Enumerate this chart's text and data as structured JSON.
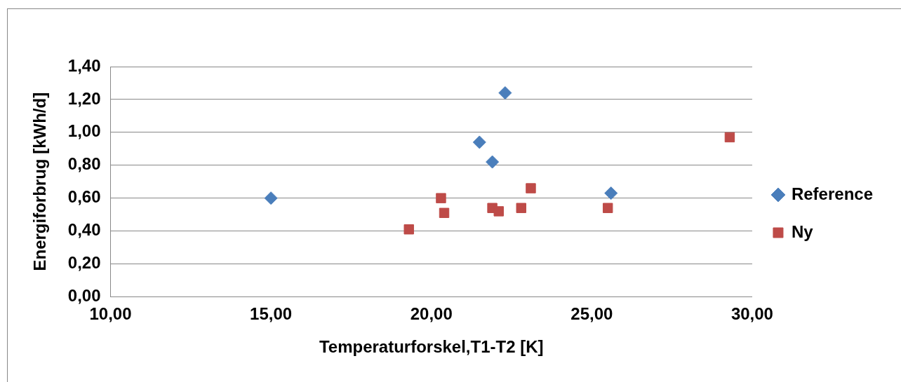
{
  "chart_data": {
    "type": "scatter",
    "xlabel": "Temperaturforskel,T1-T2 [K]",
    "ylabel": "Energiforbrug [kWh/d]",
    "series": [
      {
        "name": "Reference",
        "color": "#4a7ebb",
        "marker": "diamond",
        "x": [
          15.0,
          21.5,
          22.3,
          21.9,
          25.6
        ],
        "values": [
          0.6,
          0.94,
          1.24,
          0.82,
          0.63
        ]
      },
      {
        "name": "Ny",
        "color": "#be4b48",
        "marker": "square",
        "x": [
          19.3,
          20.3,
          20.4,
          21.9,
          22.1,
          22.8,
          23.1,
          25.5,
          29.3
        ],
        "values": [
          0.41,
          0.6,
          0.51,
          0.54,
          0.52,
          0.54,
          0.66,
          0.54,
          0.97
        ]
      }
    ],
    "xlim": [
      10,
      30
    ],
    "xticks": [
      {
        "value": 10,
        "label": "10,00"
      },
      {
        "value": 15,
        "label": "15,00"
      },
      {
        "value": 20,
        "label": "20,00"
      },
      {
        "value": 25,
        "label": "25,00"
      },
      {
        "value": 30,
        "label": "30,00"
      }
    ],
    "ylim": [
      0,
      1.4
    ],
    "yticks": [
      {
        "value": 0,
        "label": "0,00"
      },
      {
        "value": 0.2,
        "label": "0,20"
      },
      {
        "value": 0.4,
        "label": "0,40"
      },
      {
        "value": 0.6,
        "label": "0,60"
      },
      {
        "value": 0.8,
        "label": "0,80"
      },
      {
        "value": 1.0,
        "label": "1,00"
      },
      {
        "value": 1.2,
        "label": "1,20"
      },
      {
        "value": 1.4,
        "label": "1,40"
      }
    ],
    "grid": "y",
    "legend": "right"
  }
}
